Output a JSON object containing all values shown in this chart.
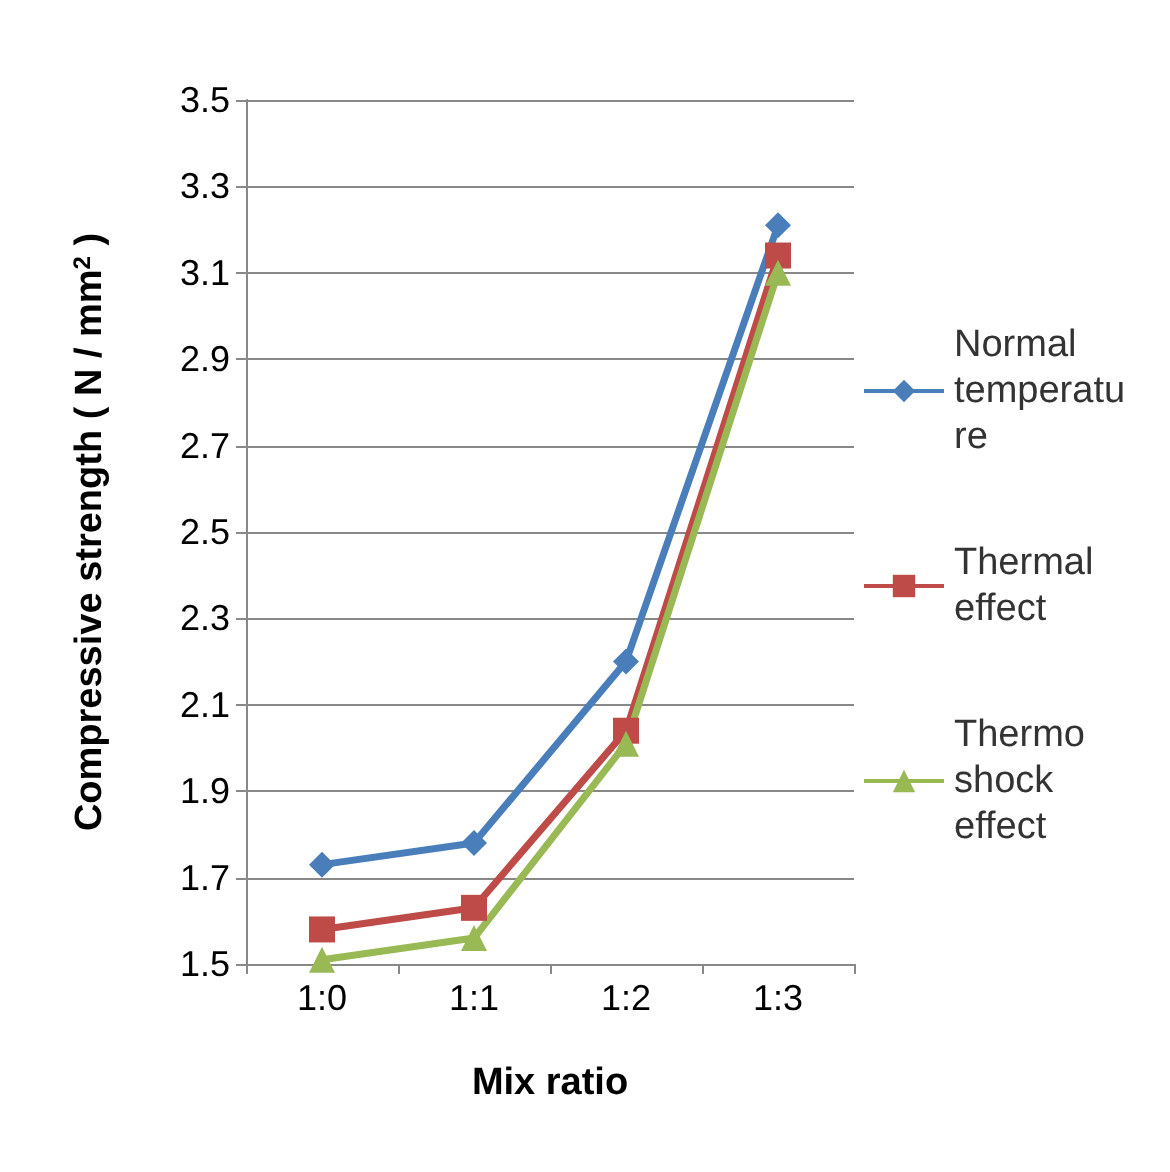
{
  "chart_data": {
    "type": "line",
    "xlabel": "Mix ratio",
    "ylabel": "Compressive strength ( N / mm$^{2}$ )",
    "categories": [
      "1:0",
      "1:1",
      "1:2",
      "1:3"
    ],
    "series": [
      {
        "name": "Normal temperature",
        "color": "#4a7ebb",
        "marker": "diamond",
        "values": [
          1.73,
          1.78,
          2.2,
          3.21
        ]
      },
      {
        "name": "Thermal effect",
        "color": "#be4b48",
        "marker": "square",
        "values": [
          1.58,
          1.63,
          2.04,
          3.14
        ]
      },
      {
        "name": "Thermo shock effect",
        "color": "#98b954",
        "marker": "triangle",
        "values": [
          1.51,
          1.56,
          2.01,
          3.1
        ]
      }
    ],
    "ylim": [
      1.5,
      3.5
    ],
    "yticks": [
      1.5,
      1.7,
      1.9,
      2.1,
      2.3,
      2.5,
      2.7,
      2.9,
      3.1,
      3.3,
      3.5
    ],
    "grid": "y",
    "legend": "right"
  }
}
